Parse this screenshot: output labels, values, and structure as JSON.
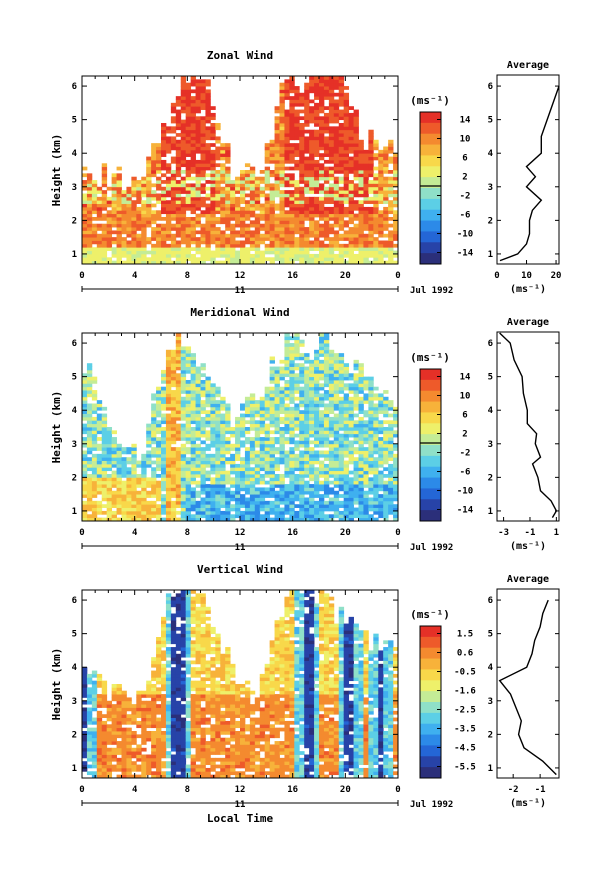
{
  "panels": [
    {
      "title": "Zonal Wind",
      "ylabel": "Height (km)",
      "unit_label": "(ms⁻¹)",
      "date_label": "Jul 1992",
      "day_label": "11",
      "xticks": [
        "0",
        "4",
        "8",
        "12",
        "16",
        "20",
        "0"
      ],
      "yticks": [
        "1",
        "2",
        "3",
        "4",
        "5",
        "6"
      ],
      "colorbar_ticks": [
        "14",
        "10",
        "6",
        "2",
        "-2",
        "-6",
        "-10",
        "-14"
      ],
      "avg_title": "Average",
      "avg_xticks": [
        "0",
        "10",
        "20"
      ],
      "avg_xlabel": "(ms⁻¹)",
      "avg_yticks": [
        "1",
        "2",
        "3",
        "4",
        "5",
        "6"
      ]
    },
    {
      "title": "Meridional Wind",
      "ylabel": "Height (km)",
      "unit_label": "(ms⁻¹)",
      "date_label": "Jul 1992",
      "day_label": "11",
      "xticks": [
        "0",
        "4",
        "8",
        "12",
        "16",
        "20",
        "0"
      ],
      "yticks": [
        "1",
        "2",
        "3",
        "4",
        "5",
        "6"
      ],
      "colorbar_ticks": [
        "14",
        "10",
        "6",
        "2",
        "-2",
        "-6",
        "-10",
        "-14"
      ],
      "avg_title": "Average",
      "avg_xticks": [
        "-3",
        "-1",
        "1"
      ],
      "avg_xlabel": "(ms⁻¹)",
      "avg_yticks": [
        "1",
        "2",
        "3",
        "4",
        "5",
        "6"
      ]
    },
    {
      "title": "Vertical Wind",
      "ylabel": "Height (km)",
      "unit_label": "(ms⁻¹)",
      "date_label": "Jul 1992",
      "day_label": "11",
      "xticks": [
        "0",
        "4",
        "8",
        "12",
        "16",
        "20",
        "0"
      ],
      "yticks": [
        "1",
        "2",
        "3",
        "4",
        "5",
        "6"
      ],
      "colorbar_ticks": [
        "1.5",
        "0.6",
        "-0.5",
        "-1.6",
        "-2.5",
        "-3.5",
        "-4.5",
        "-5.5"
      ],
      "avg_title": "Average",
      "avg_xticks": [
        "-2",
        "-1"
      ],
      "avg_xlabel": "(ms⁻¹)",
      "avg_yticks": [
        "1",
        "2",
        "3",
        "4",
        "5",
        "6"
      ]
    }
  ],
  "xlabel": "Local Time",
  "colormap": [
    "#2b2f7a",
    "#2743a8",
    "#2466d6",
    "#2c8ae8",
    "#3fb0ef",
    "#5ccfe6",
    "#8fe0c8",
    "#c4ec96",
    "#eef06a",
    "#f8d84a",
    "#f7b23a",
    "#f48a2f",
    "#ee5a2a",
    "#e53027"
  ],
  "chart_data": [
    {
      "type": "heatmap",
      "title": "Zonal Wind",
      "xlabel": "",
      "ylabel": "Height (km)",
      "x_range_hours": [
        0,
        24
      ],
      "y_range_km": [
        0.7,
        6.3
      ],
      "colorbar_range": [
        -14,
        14
      ],
      "time_columns_hours": [
        0.5,
        2.5,
        4.5,
        6.5,
        7.5,
        9.5,
        11.5,
        13.5,
        15.5,
        16.5,
        17.5,
        18.5,
        19.5,
        21.5,
        22.5
      ],
      "column_top_km": [
        3.5,
        3.3,
        3.3,
        4.8,
        6.0,
        6.0,
        3.5,
        3.2,
        6.2,
        6.2,
        6.2,
        6.2,
        6.2,
        4.5,
        4.2
      ],
      "average_profile": {
        "x_label": "(ms⁻¹)",
        "xlim": [
          0,
          21
        ],
        "height_km": [
          0.8,
          1.0,
          1.3,
          1.6,
          2.0,
          2.3,
          2.6,
          3.0,
          3.3,
          3.6,
          4.0,
          4.5,
          5.0,
          5.5,
          6.0
        ],
        "values": [
          1,
          7,
          10,
          11,
          11,
          12,
          15,
          10,
          13,
          10,
          15,
          15,
          17,
          19,
          21
        ]
      }
    },
    {
      "type": "heatmap",
      "title": "Meridional Wind",
      "xlabel": "",
      "ylabel": "Height (km)",
      "x_range_hours": [
        0,
        24
      ],
      "y_range_km": [
        0.7,
        6.3
      ],
      "colorbar_range": [
        -14,
        14
      ],
      "time_columns_hours": [
        0.5,
        2.5,
        4.5,
        6.5,
        7.5,
        9.5,
        11.5,
        13.5,
        15.5,
        16.5,
        17.5,
        18.5,
        19.5,
        21.5,
        22.5
      ],
      "column_top_km": [
        5.2,
        3.0,
        2.8,
        6.2,
        6.2,
        5.0,
        3.5,
        4.5,
        6.2,
        6.2,
        5.8,
        6.2,
        5.8,
        5.0,
        4.5
      ],
      "average_profile": {
        "x_label": "(ms⁻¹)",
        "xlim": [
          -3.5,
          1.2
        ],
        "height_km": [
          0.8,
          1.0,
          1.3,
          1.6,
          2.0,
          2.4,
          2.6,
          3.0,
          3.3,
          3.6,
          4.0,
          4.5,
          5.0,
          5.5,
          6.0,
          6.3
        ],
        "values": [
          0.7,
          1.0,
          0.6,
          -0.2,
          -0.4,
          -0.8,
          -0.2,
          -0.6,
          -0.5,
          -1.2,
          -1.2,
          -1.5,
          -1.6,
          -2.2,
          -2.5,
          -3.3
        ]
      }
    },
    {
      "type": "heatmap",
      "title": "Vertical Wind",
      "xlabel": "Local Time",
      "ylabel": "Height (km)",
      "x_range_hours": [
        0,
        24
      ],
      "y_range_km": [
        0.7,
        6.3
      ],
      "colorbar_range": [
        -5.5,
        1.5
      ],
      "time_columns_hours": [
        0.5,
        2.5,
        4.5,
        6.5,
        7.5,
        9.5,
        11.5,
        13.5,
        15.5,
        16.5,
        17.5,
        18.5,
        19.5,
        21.5,
        22.5
      ],
      "column_top_km": [
        3.8,
        3.2,
        3.2,
        6.2,
        6.2,
        6.2,
        3.6,
        3.6,
        6.2,
        6.2,
        6.2,
        6.2,
        5.5,
        5.0,
        4.5
      ],
      "average_profile": {
        "x_label": "(ms⁻¹)",
        "xlim": [
          -2.6,
          -0.3
        ],
        "height_km": [
          0.8,
          1.2,
          1.6,
          2.0,
          2.4,
          2.8,
          3.2,
          3.6,
          4.0,
          4.4,
          4.8,
          5.2,
          5.6,
          6.0
        ],
        "values": [
          -0.4,
          -0.9,
          -1.6,
          -1.8,
          -1.7,
          -1.9,
          -2.1,
          -2.5,
          -1.5,
          -1.3,
          -1.2,
          -1.0,
          -0.9,
          -0.7
        ]
      }
    }
  ]
}
